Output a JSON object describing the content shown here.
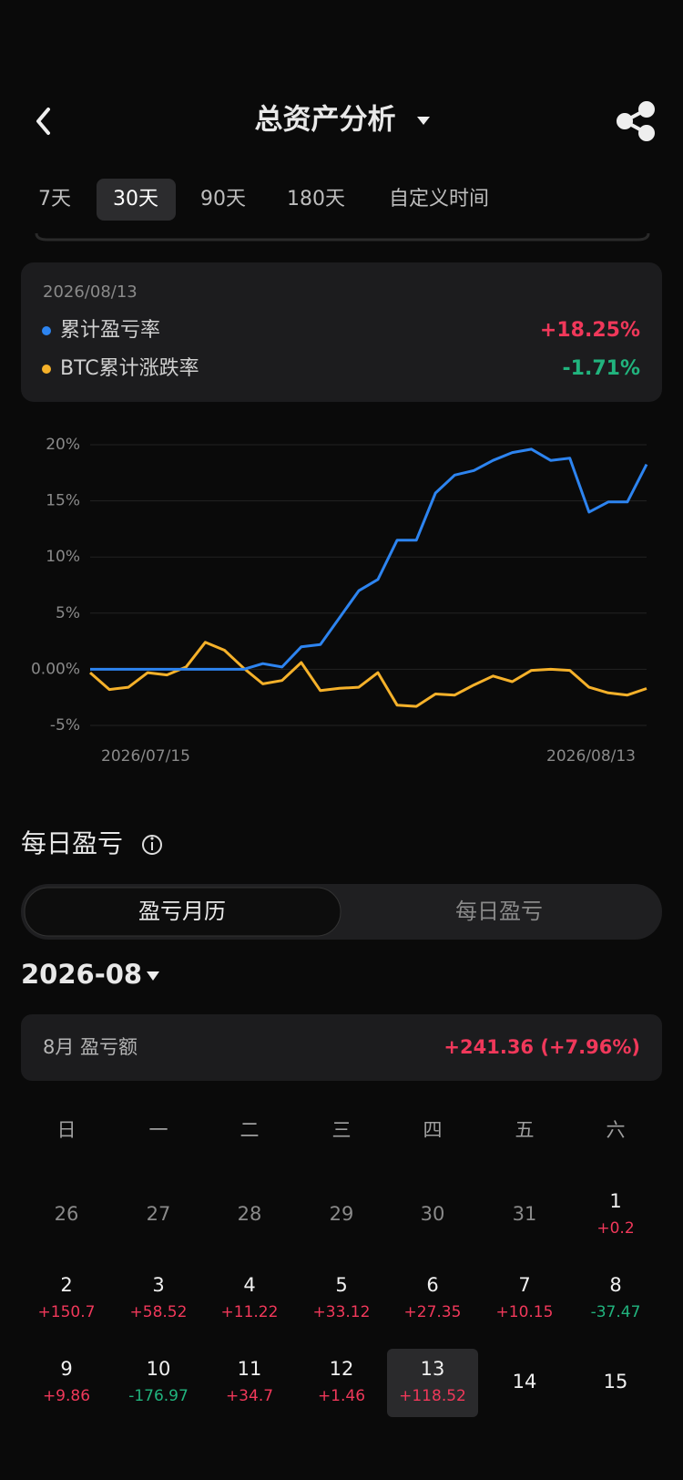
{
  "header": {
    "title": "总资产分析"
  },
  "tabs": {
    "items": [
      "7天",
      "30天",
      "90天",
      "180天",
      "自定义时间"
    ],
    "active": 1
  },
  "tooltip": {
    "date": "2026/08/13",
    "values": [
      "+18.25%",
      "-1.71%"
    ]
  },
  "chart_data": {
    "type": "line",
    "categories": [
      "2026/07/15",
      null,
      null,
      null,
      null,
      null,
      null,
      null,
      null,
      null,
      null,
      null,
      null,
      null,
      null,
      null,
      null,
      null,
      null,
      null,
      null,
      null,
      null,
      null,
      null,
      null,
      null,
      null,
      null,
      "2026/08/13"
    ],
    "series": [
      {
        "name": "累计盈亏率",
        "color": "#2d84f0",
        "values": [
          0,
          0,
          0,
          0,
          0,
          0,
          0,
          0,
          0,
          0.5,
          0.2,
          2.0,
          2.2,
          4.6,
          7.0,
          8.0,
          11.5,
          11.5,
          15.7,
          17.3,
          17.7,
          18.6,
          19.3,
          19.6,
          18.6,
          18.8,
          14.0,
          14.9,
          14.9,
          18.25
        ]
      },
      {
        "name": "BTC累计涨跌率",
        "color": "#f5b12a",
        "values": [
          -0.3,
          -1.8,
          -1.6,
          -0.3,
          -0.5,
          0.2,
          2.4,
          1.7,
          0.1,
          -1.3,
          -1.0,
          0.6,
          -1.9,
          -1.7,
          -1.6,
          -0.3,
          -3.2,
          -3.3,
          -2.2,
          -2.3,
          -1.4,
          -0.6,
          -1.1,
          -0.1,
          0,
          -0.1,
          -1.6,
          -2.1,
          -2.3,
          -1.71
        ]
      }
    ],
    "ylim": [
      -5,
      20
    ],
    "yticks": [
      {
        "value": 20,
        "label": "20%"
      },
      {
        "value": 15,
        "label": "15%"
      },
      {
        "value": 10,
        "label": "10%"
      },
      {
        "value": 5,
        "label": "5%"
      },
      {
        "value": 0,
        "label": "0.00%"
      },
      {
        "value": -5,
        "label": "-5%"
      }
    ],
    "grid": true
  },
  "daily": {
    "title": "每日盈亏",
    "toggle": [
      "盈亏月历",
      "每日盈亏"
    ],
    "month": "2026-08",
    "summary_label": "8月 盈亏额",
    "summary_value": "+241.36 (+7.96%)",
    "weekdays": [
      "日",
      "一",
      "二",
      "三",
      "四",
      "五",
      "六"
    ],
    "weeks": [
      [
        {
          "day": 26,
          "in_month": false
        },
        {
          "day": 27,
          "in_month": false
        },
        {
          "day": 28,
          "in_month": false
        },
        {
          "day": 29,
          "in_month": false
        },
        {
          "day": 30,
          "in_month": false
        },
        {
          "day": 31,
          "in_month": false
        },
        {
          "day": 1,
          "pnl": "+0.2"
        }
      ],
      [
        {
          "day": 2,
          "pnl": "+150.7"
        },
        {
          "day": 3,
          "pnl": "+58.52"
        },
        {
          "day": 4,
          "pnl": "+11.22"
        },
        {
          "day": 5,
          "pnl": "+33.12"
        },
        {
          "day": 6,
          "pnl": "+27.35"
        },
        {
          "day": 7,
          "pnl": "+10.15"
        },
        {
          "day": 8,
          "pnl": "-37.47"
        }
      ],
      [
        {
          "day": 9,
          "pnl": "+9.86"
        },
        {
          "day": 10,
          "pnl": "-176.97"
        },
        {
          "day": 11,
          "pnl": "+34.7"
        },
        {
          "day": 12,
          "pnl": "+1.46"
        },
        {
          "day": 13,
          "pnl": "+118.52",
          "selected": true
        },
        {
          "day": 14
        },
        {
          "day": 15
        }
      ]
    ]
  }
}
